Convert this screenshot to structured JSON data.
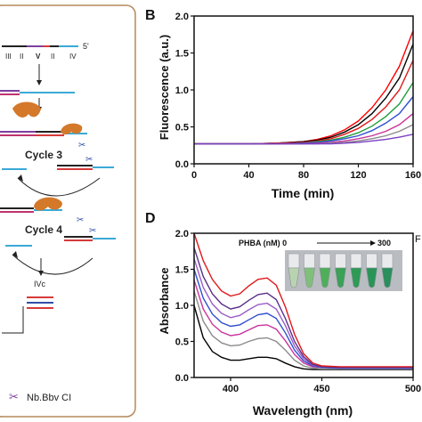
{
  "diagram": {
    "top_label": "5'",
    "domain_labels": [
      "III",
      "II",
      "V",
      "II",
      "IV"
    ],
    "cycle3_label": "Cycle 3",
    "cycle4_label": "Cycle 4",
    "product_label": "IVc",
    "legend_label": "Nb.Bbv CI",
    "colors": {
      "border": "#b48a5a",
      "enzyme": "#d4782a",
      "cyan": "#3aa9d6",
      "purple": "#7e3f9e",
      "red": "#d63a3a",
      "black": "#222222",
      "magenta": "#c0336e",
      "blue": "#2f4fa8"
    }
  },
  "chart_data": [
    {
      "panel": "B",
      "type": "line",
      "xlabel": "Time (min)",
      "ylabel": "Fluorescence (a.u.)",
      "xlim": [
        0,
        160
      ],
      "ylim": [
        0,
        2.0
      ],
      "xticks": [
        0,
        40,
        80,
        120,
        160
      ],
      "yticks": [
        0.0,
        0.5,
        1.0,
        1.5,
        2.0
      ],
      "ytick_labels": [
        "0.0",
        "0.5",
        "1.0",
        "1.5",
        "2.0"
      ],
      "grid": false,
      "series": [
        {
          "color": "#ff0000",
          "x": [
            0,
            20,
            40,
            60,
            80,
            90,
            100,
            110,
            120,
            130,
            140,
            150,
            160
          ],
          "y": [
            0.27,
            0.27,
            0.27,
            0.28,
            0.3,
            0.33,
            0.38,
            0.46,
            0.58,
            0.76,
            1.0,
            1.32,
            1.8
          ]
        },
        {
          "color": "#000000",
          "x": [
            0,
            20,
            40,
            60,
            80,
            90,
            100,
            110,
            120,
            130,
            140,
            150,
            160
          ],
          "y": [
            0.27,
            0.27,
            0.27,
            0.28,
            0.3,
            0.32,
            0.36,
            0.43,
            0.53,
            0.68,
            0.89,
            1.16,
            1.62
          ]
        },
        {
          "color": "#e0191b",
          "x": [
            0,
            20,
            40,
            60,
            80,
            90,
            100,
            110,
            120,
            130,
            140,
            150,
            160
          ],
          "y": [
            0.27,
            0.27,
            0.27,
            0.28,
            0.29,
            0.31,
            0.34,
            0.4,
            0.48,
            0.6,
            0.77,
            1.0,
            1.4
          ]
        },
        {
          "color": "#1f9e3a",
          "x": [
            0,
            20,
            40,
            60,
            80,
            90,
            100,
            110,
            120,
            130,
            140,
            150,
            160
          ],
          "y": [
            0.27,
            0.27,
            0.27,
            0.27,
            0.28,
            0.3,
            0.32,
            0.36,
            0.42,
            0.51,
            0.64,
            0.81,
            1.1
          ]
        },
        {
          "color": "#2f4fd0",
          "x": [
            0,
            20,
            40,
            60,
            80,
            90,
            100,
            110,
            120,
            130,
            140,
            150,
            160
          ],
          "y": [
            0.27,
            0.27,
            0.27,
            0.27,
            0.28,
            0.29,
            0.31,
            0.34,
            0.38,
            0.45,
            0.55,
            0.68,
            0.91
          ]
        },
        {
          "color": "#c8339a",
          "x": [
            0,
            20,
            40,
            60,
            80,
            90,
            100,
            110,
            120,
            130,
            140,
            150,
            160
          ],
          "y": [
            0.27,
            0.27,
            0.27,
            0.27,
            0.27,
            0.28,
            0.29,
            0.31,
            0.34,
            0.38,
            0.44,
            0.53,
            0.68
          ]
        },
        {
          "color": "#8a8a8a",
          "x": [
            0,
            20,
            40,
            60,
            80,
            90,
            100,
            110,
            120,
            130,
            140,
            150,
            160
          ],
          "y": [
            0.27,
            0.27,
            0.27,
            0.27,
            0.27,
            0.27,
            0.28,
            0.29,
            0.31,
            0.34,
            0.38,
            0.44,
            0.53
          ]
        },
        {
          "color": "#7b3fc4",
          "x": [
            0,
            20,
            40,
            60,
            80,
            90,
            100,
            110,
            120,
            130,
            140,
            150,
            160
          ],
          "y": [
            0.27,
            0.27,
            0.27,
            0.27,
            0.27,
            0.27,
            0.27,
            0.28,
            0.29,
            0.31,
            0.33,
            0.36,
            0.4
          ]
        }
      ]
    },
    {
      "panel": "D",
      "type": "line",
      "xlabel": "Wavelength (nm)",
      "ylabel": "Absorbance",
      "xlim": [
        380,
        500
      ],
      "ylim": [
        0.0,
        2.0
      ],
      "xticks": [
        400,
        450,
        500
      ],
      "yticks": [
        0.0,
        0.5,
        1.0,
        1.5,
        2.0
      ],
      "ytick_labels": [
        "0.0",
        "0.5",
        "1.0",
        "1.5",
        "2.0"
      ],
      "grid": false,
      "annotation": "PHBA (nM) 0",
      "annotation_end": "300",
      "series": [
        {
          "color": "#000000",
          "x": [
            380,
            385,
            390,
            395,
            400,
            405,
            410,
            415,
            420,
            425,
            430,
            435,
            440,
            445,
            450,
            460,
            470,
            480,
            490,
            500
          ],
          "y": [
            1.0,
            0.55,
            0.36,
            0.28,
            0.24,
            0.24,
            0.26,
            0.28,
            0.28,
            0.26,
            0.2,
            0.15,
            0.12,
            0.11,
            0.11,
            0.11,
            0.11,
            0.11,
            0.11,
            0.11
          ]
        },
        {
          "color": "#8a8a8a",
          "x": [
            380,
            385,
            390,
            395,
            400,
            405,
            410,
            415,
            420,
            425,
            430,
            435,
            440,
            445,
            450,
            460,
            470,
            480,
            490,
            500
          ],
          "y": [
            1.2,
            0.78,
            0.58,
            0.48,
            0.44,
            0.45,
            0.5,
            0.54,
            0.55,
            0.5,
            0.38,
            0.24,
            0.16,
            0.13,
            0.12,
            0.12,
            0.12,
            0.12,
            0.12,
            0.12
          ]
        },
        {
          "color": "#c8339a",
          "x": [
            380,
            385,
            390,
            395,
            400,
            405,
            410,
            415,
            420,
            425,
            430,
            435,
            440,
            445,
            450,
            460,
            470,
            480,
            490,
            500
          ],
          "y": [
            1.35,
            0.95,
            0.74,
            0.63,
            0.58,
            0.6,
            0.66,
            0.72,
            0.73,
            0.67,
            0.51,
            0.32,
            0.2,
            0.15,
            0.14,
            0.13,
            0.13,
            0.13,
            0.13,
            0.13
          ]
        },
        {
          "color": "#2f4fd0",
          "x": [
            380,
            385,
            390,
            395,
            400,
            405,
            410,
            415,
            420,
            425,
            430,
            435,
            440,
            445,
            450,
            460,
            470,
            480,
            490,
            500
          ],
          "y": [
            1.5,
            1.1,
            0.88,
            0.76,
            0.71,
            0.73,
            0.8,
            0.87,
            0.89,
            0.82,
            0.62,
            0.38,
            0.23,
            0.16,
            0.14,
            0.13,
            0.13,
            0.13,
            0.13,
            0.13
          ]
        },
        {
          "color": "#9a5cc8",
          "x": [
            380,
            385,
            390,
            395,
            400,
            405,
            410,
            415,
            420,
            425,
            430,
            435,
            440,
            445,
            450,
            460,
            470,
            480,
            490,
            500
          ],
          "y": [
            1.65,
            1.25,
            1.02,
            0.89,
            0.83,
            0.86,
            0.94,
            1.01,
            1.03,
            0.95,
            0.72,
            0.44,
            0.26,
            0.17,
            0.15,
            0.14,
            0.14,
            0.14,
            0.14,
            0.14
          ]
        },
        {
          "color": "#5a2f8a",
          "x": [
            380,
            385,
            390,
            395,
            400,
            405,
            410,
            415,
            420,
            425,
            430,
            435,
            440,
            445,
            450,
            460,
            470,
            480,
            490,
            500
          ],
          "y": [
            1.8,
            1.4,
            1.16,
            1.02,
            0.95,
            0.98,
            1.07,
            1.15,
            1.17,
            1.08,
            0.82,
            0.5,
            0.29,
            0.18,
            0.15,
            0.14,
            0.14,
            0.14,
            0.14,
            0.14
          ]
        },
        {
          "color": "#e0191b",
          "x": [
            380,
            385,
            390,
            395,
            400,
            405,
            410,
            415,
            420,
            425,
            430,
            435,
            440,
            445,
            450,
            460,
            470,
            480,
            490,
            500
          ],
          "y": [
            2.0,
            1.62,
            1.36,
            1.2,
            1.13,
            1.16,
            1.27,
            1.36,
            1.38,
            1.28,
            0.98,
            0.6,
            0.33,
            0.2,
            0.16,
            0.15,
            0.15,
            0.15,
            0.15,
            0.15
          ]
        }
      ]
    }
  ],
  "panel_labels": {
    "b": "B",
    "d": "D",
    "right_cut_top": "F"
  }
}
